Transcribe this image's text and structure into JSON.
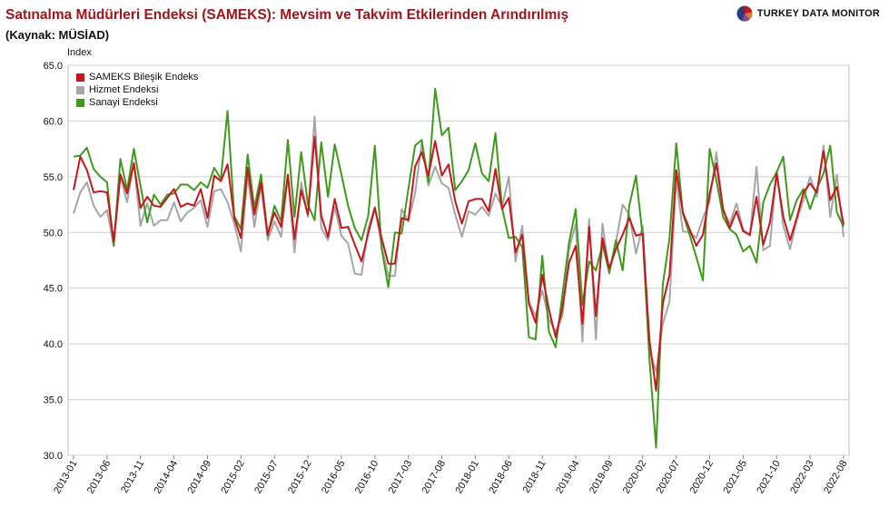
{
  "header": {
    "title": "Satınalma Müdürleri Endeksi (SAMEKS): Mevsim ve Takvim Etkilerinden Arındırılmış",
    "subtitle": "(Kaynak: MÜSİAD)",
    "brand": "TURKEY DATA MONITOR",
    "brand_icon": "pie-logo-icon"
  },
  "colors": {
    "title": "#a0151c",
    "sameks": "#c8161d",
    "hizmet": "#a6a6a6",
    "sanayi": "#3f9a1c",
    "grid": "#d0d0d0"
  },
  "chart_data": {
    "type": "line",
    "ylabel": "Index",
    "ylim": [
      30,
      65
    ],
    "yticks": [
      "30.0",
      "35.0",
      "40.0",
      "45.0",
      "50.0",
      "55.0",
      "60.0",
      "65.0"
    ],
    "xlabel": "",
    "x_start": "2013-01",
    "xtick_labels": [
      "2013-01",
      "2013-06",
      "2013-11",
      "2014-04",
      "2014-09",
      "2015-02",
      "2015-07",
      "2015-12",
      "2016-05",
      "2016-10",
      "2017-03",
      "2017-08",
      "2018-01",
      "2018-06",
      "2018-11",
      "2019-04",
      "2019-09",
      "2020-02",
      "2020-07",
      "2020-12",
      "2021-05",
      "2021-10",
      "2022-03",
      "2022-08"
    ],
    "grid": "horizontal",
    "legend_position": "top-left",
    "series": [
      {
        "name": "SAMEKS Bileşik Endeks",
        "color": "#c8161d",
        "values": [
          53.8,
          56.8,
          55.6,
          53.6,
          53.7,
          53.6,
          49.2,
          55.2,
          53.5,
          56.2,
          52.2,
          53.2,
          52.4,
          52.3,
          53.1,
          53.9,
          52.3,
          52.6,
          52.4,
          53.9,
          51.3,
          55.1,
          54.6,
          56.1,
          51.3,
          49.5,
          55.8,
          51.6,
          54.5,
          49.8,
          51.8,
          50.5,
          55.2,
          49.4,
          53.8,
          51.6,
          58.6,
          51.5,
          49.6,
          53.0,
          50.4,
          50.5,
          48.9,
          47.4,
          49.9,
          52.2,
          49.5,
          47.2,
          47.2,
          51.3,
          51.1,
          55.9,
          57.2,
          55.1,
          58.2,
          55.1,
          56.1,
          52.8,
          50.8,
          52.8,
          53.0,
          53.0,
          51.9,
          55.7,
          52.1,
          53.1,
          48.2,
          49.8,
          43.6,
          41.9,
          46.2,
          43.1,
          40.6,
          43.2,
          47.3,
          48.8,
          41.8,
          50.5,
          42.5,
          49.5,
          46.8,
          48.5,
          49.8,
          51.3,
          49.7,
          49.9,
          40.3,
          35.8,
          43.6,
          46.2,
          55.6,
          51.8,
          50.3,
          48.8,
          49.8,
          53.5,
          56.2,
          52.1,
          50.4,
          51.9,
          50.1,
          49.8,
          53.2,
          48.9,
          50.9,
          55.3,
          51.4,
          49.3,
          51.3,
          53.6,
          54.4,
          53.6,
          57.3,
          52.9,
          54.1,
          50.7
        ]
      },
      {
        "name": "Hizmet Endeksi",
        "color": "#a6a6a6",
        "values": [
          51.7,
          53.6,
          54.5,
          52.4,
          51.4,
          52.0,
          48.8,
          55.1,
          52.7,
          56.3,
          50.6,
          52.6,
          50.6,
          51.1,
          51.1,
          52.7,
          51.0,
          51.8,
          52.2,
          52.9,
          50.5,
          53.7,
          53.9,
          52.7,
          50.8,
          48.3,
          55.2,
          50.5,
          54.2,
          49.3,
          51.0,
          49.6,
          55.0,
          48.2,
          54.5,
          51.4,
          60.4,
          50.4,
          49.3,
          52.3,
          49.7,
          49.0,
          46.3,
          46.2,
          50.4,
          52.3,
          48.8,
          46.1,
          46.1,
          52.1,
          51.0,
          53.5,
          58.0,
          54.2,
          55.9,
          54.4,
          54.0,
          51.6,
          49.6,
          51.9,
          51.6,
          52.3,
          51.5,
          53.5,
          52.3,
          55.0,
          47.4,
          50.6,
          43.8,
          42.5,
          44.8,
          42.2,
          41.1,
          42.5,
          48.5,
          50.8,
          40.2,
          51.2,
          40.4,
          50.8,
          46.3,
          49.1,
          52.5,
          51.6,
          48.1,
          50.6,
          39.5,
          37.5,
          41.8,
          43.8,
          54.8,
          50.1,
          50.0,
          49.5,
          51.3,
          52.8,
          57.2,
          52.0,
          50.8,
          52.6,
          50.3,
          49.7,
          55.9,
          48.4,
          48.8,
          55.5,
          50.6,
          48.5,
          51.1,
          52.9,
          55.0,
          53.2,
          57.8,
          51.4,
          55.2,
          49.6
        ]
      },
      {
        "name": "Sanayi Endeksi",
        "color": "#3f9a1c",
        "values": [
          56.8,
          56.9,
          57.6,
          55.7,
          55.0,
          54.5,
          48.8,
          56.6,
          53.8,
          57.5,
          54.2,
          50.9,
          53.4,
          52.5,
          53.4,
          53.5,
          54.3,
          54.3,
          53.8,
          54.5,
          54.0,
          55.8,
          54.8,
          60.9,
          51.5,
          50.3,
          57.0,
          52.2,
          55.2,
          49.7,
          52.4,
          51.0,
          58.3,
          51.4,
          57.2,
          52.5,
          51.1,
          58.1,
          53.2,
          57.9,
          55.2,
          52.4,
          50.4,
          49.3,
          51.5,
          57.8,
          48.6,
          45.1,
          50.0,
          49.9,
          53.9,
          57.8,
          58.3,
          54.5,
          62.9,
          58.7,
          59.4,
          53.8,
          54.6,
          55.6,
          58.0,
          55.3,
          54.6,
          58.9,
          52.2,
          49.5,
          49.6,
          48.7,
          40.6,
          40.4,
          47.9,
          41.1,
          39.7,
          44.4,
          49.1,
          52.1,
          43.5,
          47.4,
          46.6,
          48.9,
          46.4,
          49.3,
          46.6,
          52.4,
          55.1,
          49.6,
          38.6,
          30.7,
          45.3,
          49.5,
          58.0,
          51.7,
          49.8,
          47.8,
          45.7,
          57.5,
          54.7,
          51.4,
          50.3,
          49.8,
          48.3,
          48.8,
          47.3,
          52.7,
          54.3,
          55.4,
          56.8,
          51.1,
          52.9,
          53.9,
          52.1,
          53.9,
          55.3,
          57.8,
          51.8,
          50.5
        ]
      }
    ]
  }
}
